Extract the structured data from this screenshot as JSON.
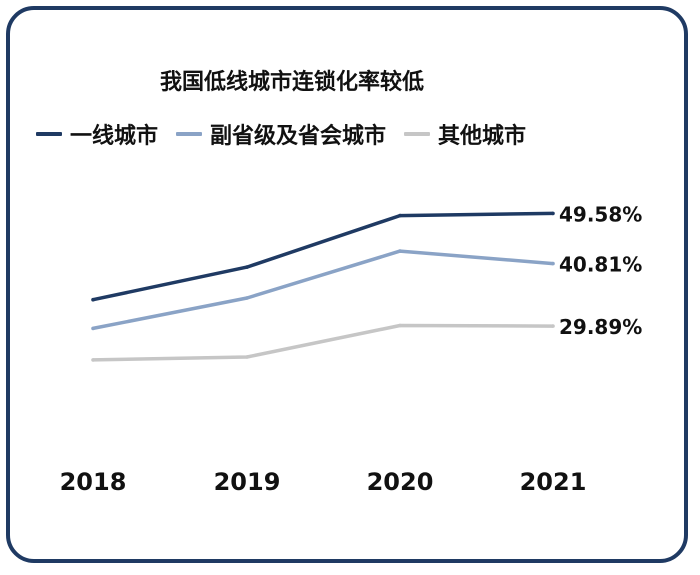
{
  "chart_data": {
    "type": "line",
    "title": "我国低线城市连锁化率较低",
    "categories": [
      "2018",
      "2019",
      "2020",
      "2021"
    ],
    "series": [
      {
        "name": "一线城市",
        "color": "#1f3a63",
        "values": [
          34.5,
          40.2,
          49.2,
          49.58
        ],
        "end_label": "49.58%"
      },
      {
        "name": "副省级及省会城市",
        "color": "#8aa3c6",
        "values": [
          29.5,
          34.8,
          43.0,
          40.81
        ],
        "end_label": "40.81%"
      },
      {
        "name": "其他城市",
        "color": "#c6c6c6",
        "values": [
          24.0,
          24.5,
          30.0,
          29.89
        ],
        "end_label": "29.89%"
      }
    ],
    "ylim": [
      0,
      60
    ],
    "grid": false,
    "legend_position": "top"
  }
}
